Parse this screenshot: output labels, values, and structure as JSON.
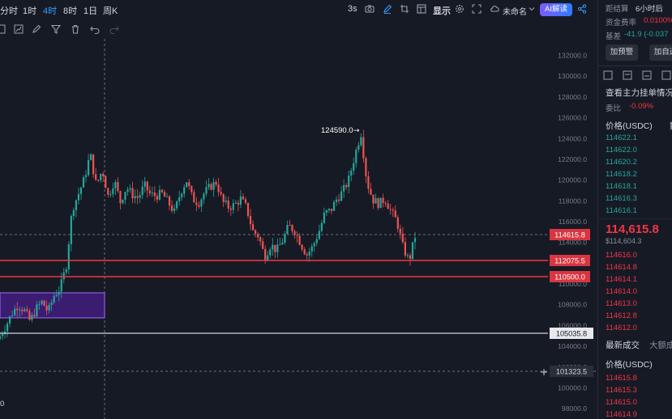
{
  "toolbar": {
    "timeframes": [
      "分时",
      "1时",
      "4时",
      "8时",
      "1日",
      "周K"
    ],
    "active_timeframe": "4时",
    "interval_label": "3s",
    "display_label": "显示",
    "layout_name": "未命名",
    "ai_label": "AI解读"
  },
  "chart": {
    "peak_label": "124590.0",
    "bottom_left_label": "0",
    "price_axis": [
      "132000.0",
      "130000.0",
      "128000.0",
      "126000.0",
      "124000.0",
      "122000.0",
      "120000.0",
      "118000.0",
      "116000.0",
      "114000.0",
      "112000.0",
      "110000.0",
      "108000.0",
      "106000.0",
      "104000.0",
      "102000.0",
      "100000.0",
      "98000.0"
    ],
    "tags": {
      "current": "114615.8",
      "line1": "112075.5",
      "line2": "110500.0",
      "line3": "105035.8",
      "cursor": "101323.5"
    },
    "colors": {
      "up": "#26a69a",
      "down": "#ef5350",
      "hline": "#f23645",
      "box": "#8a3cff"
    }
  },
  "chart_data": {
    "type": "candlestick",
    "y_unit": "USDC",
    "ylim": [
      97000,
      133600
    ],
    "close_path": [
      105000,
      106000,
      107200,
      108000,
      107500,
      106400,
      107600,
      108300,
      107300,
      108900,
      109600,
      111700,
      117200,
      118600,
      120100,
      122500,
      119500,
      121000,
      118400,
      120000,
      117900,
      119300,
      118600,
      118300,
      119500,
      118600,
      118500,
      118700,
      117800,
      116900,
      118800,
      120000,
      118200,
      117800,
      118800,
      119400,
      119800,
      117900,
      117400,
      117600,
      118200,
      117300,
      115100,
      114600,
      112600,
      113800,
      113200,
      114200,
      115600,
      115100,
      113900,
      112800,
      113600,
      115000,
      116800,
      117100,
      118200,
      118900,
      120100,
      122400,
      124590,
      119800,
      118100,
      117700,
      118200,
      117000,
      116000,
      113500,
      112200,
      114600
    ],
    "horizontal_levels": [
      112075.5,
      110500.0,
      105035.8
    ],
    "crosshair_price": 101323.5,
    "peak": 124590.0,
    "current_price": 114615.8
  },
  "panel": {
    "settle_label": "距结算",
    "settle_value": "6小时后",
    "funding_label": "资金费率",
    "funding_value": "0.0100%",
    "basis_label": "基差",
    "basis_value": "-41.9 (-0.037",
    "alert_btn": "加预警",
    "watch_btn": "加自选",
    "book_title": "查看主力挂单情况",
    "ratio_label": "委比",
    "ratio_value": "-0.09%",
    "price_header": "价格(USDC)",
    "qty_header": "数",
    "asks": [
      "114622.1",
      "114622.0",
      "114620.2",
      "114618.2",
      "114618.1",
      "114616.3",
      "114616.1"
    ],
    "last_price": "114,615.8",
    "mark_price": "$114,604.3",
    "bids": [
      "114616.0",
      "114614.8",
      "114614.1",
      "114614.0",
      "114613.0",
      "114612.8",
      "114612.0"
    ],
    "trades_tab": "最新成交",
    "bigtrades_tab": "大额成",
    "trades_price_header": "价格(USDC)",
    "trades": [
      "114615.8",
      "114615.3",
      "114615.0",
      "114614.9"
    ]
  }
}
